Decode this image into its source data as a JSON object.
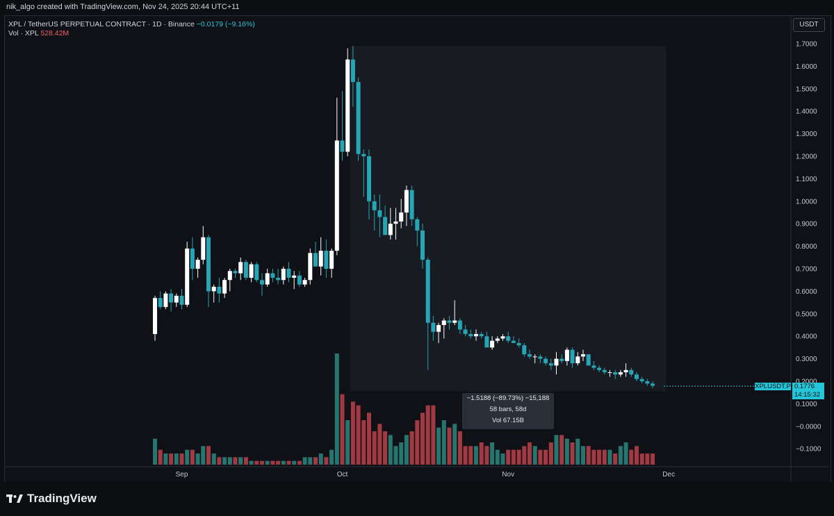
{
  "header": {
    "attribution": "nik_algo created with TradingView.com, Nov 24, 2025 20:44 UTC+11"
  },
  "legend": {
    "symbol_line": "XPL / TetherUS PERPETUAL CONTRACT · 1D · Binance",
    "change": "−0.0179 (−9.16%)",
    "vol_label": "Vol · XPL",
    "vol_value": "528.42M"
  },
  "currency_button": "USDT",
  "price_tag": {
    "symbol": "XPLUSDT.P",
    "price": "0.1776",
    "countdown": "14:15:32"
  },
  "measure": {
    "line1": "−1.5188 (−89.73%) −15,188",
    "line2": "58 bars, 58d",
    "line3": "Vol 67.15B"
  },
  "logo_text": "TradingView",
  "colors": {
    "up": "#ffffff",
    "down": "#26a5b5",
    "vol_up": "#26756f",
    "vol_down": "#a23a43",
    "last_price": "#26c6da"
  },
  "chart_data": {
    "type": "candlestick",
    "y_ticks": [
      "1.7000",
      "1.6000",
      "1.5000",
      "1.4000",
      "1.3000",
      "1.2000",
      "1.1000",
      "1.0000",
      "0.9000",
      "0.8000",
      "0.7000",
      "0.6000",
      "0.5000",
      "0.4000",
      "0.3000",
      "0.2000",
      "0.1000",
      "−0.0000",
      "−0.1000"
    ],
    "x_ticks": [
      "Sep",
      "Oct",
      "Nov",
      "Dec"
    ],
    "x_tick_days": [
      5,
      35,
      66,
      96
    ],
    "start_date": "2025-08-25",
    "ohlc": [
      [
        0.41,
        0.58,
        0.38,
        0.57
      ],
      [
        0.57,
        0.6,
        0.52,
        0.53
      ],
      [
        0.53,
        0.6,
        0.52,
        0.59
      ],
      [
        0.59,
        0.61,
        0.51,
        0.55
      ],
      [
        0.55,
        0.59,
        0.53,
        0.58
      ],
      [
        0.58,
        0.61,
        0.52,
        0.54
      ],
      [
        0.54,
        0.82,
        0.53,
        0.79
      ],
      [
        0.79,
        0.84,
        0.65,
        0.7
      ],
      [
        0.7,
        0.75,
        0.66,
        0.74
      ],
      [
        0.74,
        0.89,
        0.72,
        0.84
      ],
      [
        0.84,
        0.85,
        0.53,
        0.6
      ],
      [
        0.6,
        0.63,
        0.55,
        0.62
      ],
      [
        0.62,
        0.66,
        0.55,
        0.59
      ],
      [
        0.59,
        0.66,
        0.57,
        0.65
      ],
      [
        0.65,
        0.7,
        0.6,
        0.69
      ],
      [
        0.69,
        0.7,
        0.66,
        0.68
      ],
      [
        0.68,
        0.75,
        0.65,
        0.73
      ],
      [
        0.73,
        0.74,
        0.65,
        0.66
      ],
      [
        0.66,
        0.73,
        0.64,
        0.72
      ],
      [
        0.72,
        0.73,
        0.64,
        0.65
      ],
      [
        0.65,
        0.68,
        0.58,
        0.63
      ],
      [
        0.63,
        0.7,
        0.62,
        0.68
      ],
      [
        0.68,
        0.7,
        0.64,
        0.66
      ],
      [
        0.66,
        0.7,
        0.63,
        0.65
      ],
      [
        0.65,
        0.71,
        0.63,
        0.7
      ],
      [
        0.7,
        0.73,
        0.64,
        0.66
      ],
      [
        0.66,
        0.69,
        0.61,
        0.67
      ],
      [
        0.67,
        0.69,
        0.62,
        0.63
      ],
      [
        0.63,
        0.66,
        0.62,
        0.65
      ],
      [
        0.65,
        0.79,
        0.63,
        0.77
      ],
      [
        0.77,
        0.82,
        0.72,
        0.71
      ],
      [
        0.71,
        0.84,
        0.67,
        0.78
      ],
      [
        0.78,
        0.83,
        0.66,
        0.7
      ],
      [
        0.7,
        0.79,
        0.66,
        0.78
      ],
      [
        0.78,
        1.46,
        0.76,
        1.27
      ],
      [
        1.27,
        1.49,
        1.18,
        1.22
      ],
      [
        1.22,
        1.68,
        1.2,
        1.63
      ],
      [
        1.63,
        1.69,
        1.42,
        1.53
      ],
      [
        1.53,
        1.55,
        1.18,
        1.21
      ],
      [
        1.21,
        1.23,
        1.02,
        1.2
      ],
      [
        1.2,
        1.23,
        0.92,
        1.0
      ],
      [
        1.0,
        1.03,
        0.87,
        0.96
      ],
      [
        0.96,
        1.03,
        0.84,
        0.93
      ],
      [
        0.93,
        0.98,
        0.86,
        0.85
      ],
      [
        0.85,
        0.97,
        0.83,
        0.9
      ],
      [
        0.9,
        0.97,
        0.83,
        0.91
      ],
      [
        0.91,
        1.01,
        0.88,
        0.95
      ],
      [
        0.95,
        1.07,
        0.89,
        1.05
      ],
      [
        1.05,
        1.07,
        0.89,
        0.92
      ],
      [
        0.92,
        0.93,
        0.8,
        0.87
      ],
      [
        0.87,
        0.9,
        0.7,
        0.74
      ],
      [
        0.74,
        0.75,
        0.25,
        0.46
      ],
      [
        0.46,
        0.49,
        0.38,
        0.42
      ],
      [
        0.42,
        0.46,
        0.37,
        0.45
      ],
      [
        0.45,
        0.48,
        0.39,
        0.47
      ],
      [
        0.47,
        0.49,
        0.43,
        0.46
      ],
      [
        0.46,
        0.56,
        0.45,
        0.47
      ],
      [
        0.47,
        0.48,
        0.41,
        0.43
      ],
      [
        0.43,
        0.45,
        0.4,
        0.41
      ],
      [
        0.41,
        0.43,
        0.39,
        0.4
      ],
      [
        0.4,
        0.43,
        0.38,
        0.41
      ],
      [
        0.41,
        0.42,
        0.39,
        0.4
      ],
      [
        0.4,
        0.42,
        0.35,
        0.35
      ],
      [
        0.35,
        0.4,
        0.34,
        0.38
      ],
      [
        0.38,
        0.4,
        0.37,
        0.39
      ],
      [
        0.39,
        0.41,
        0.38,
        0.4
      ],
      [
        0.4,
        0.42,
        0.37,
        0.38
      ],
      [
        0.38,
        0.4,
        0.37,
        0.37
      ],
      [
        0.37,
        0.39,
        0.35,
        0.36
      ],
      [
        0.36,
        0.37,
        0.31,
        0.32
      ],
      [
        0.32,
        0.34,
        0.3,
        0.31
      ],
      [
        0.31,
        0.32,
        0.28,
        0.31
      ],
      [
        0.31,
        0.32,
        0.28,
        0.3
      ],
      [
        0.3,
        0.31,
        0.27,
        0.28
      ],
      [
        0.28,
        0.3,
        0.25,
        0.27
      ],
      [
        0.27,
        0.33,
        0.23,
        0.3
      ],
      [
        0.3,
        0.32,
        0.28,
        0.29
      ],
      [
        0.29,
        0.35,
        0.27,
        0.34
      ],
      [
        0.34,
        0.35,
        0.26,
        0.28
      ],
      [
        0.28,
        0.33,
        0.27,
        0.31
      ],
      [
        0.31,
        0.34,
        0.29,
        0.32
      ],
      [
        0.32,
        0.32,
        0.27,
        0.27
      ],
      [
        0.27,
        0.29,
        0.25,
        0.26
      ],
      [
        0.26,
        0.27,
        0.24,
        0.25
      ],
      [
        0.25,
        0.26,
        0.23,
        0.24
      ],
      [
        0.24,
        0.25,
        0.22,
        0.24
      ],
      [
        0.24,
        0.25,
        0.21,
        0.23
      ],
      [
        0.23,
        0.25,
        0.22,
        0.24
      ],
      [
        0.24,
        0.28,
        0.22,
        0.25
      ],
      [
        0.25,
        0.26,
        0.22,
        0.23
      ],
      [
        0.23,
        0.24,
        0.2,
        0.21
      ],
      [
        0.21,
        0.22,
        0.19,
        0.2
      ],
      [
        0.2,
        0.21,
        0.18,
        0.19
      ],
      [
        0.19,
        0.2,
        0.17,
        0.18
      ]
    ],
    "volume": [
      0.07,
      0.04,
      0.03,
      0.03,
      0.03,
      0.03,
      0.04,
      0.04,
      0.03,
      0.05,
      0.05,
      0.03,
      0.02,
      0.02,
      0.02,
      0.02,
      0.02,
      0.02,
      0.01,
      0.01,
      0.01,
      0.01,
      0.01,
      0.01,
      0.01,
      0.01,
      0.01,
      0.01,
      0.02,
      0.02,
      0.02,
      0.03,
      0.02,
      0.04,
      0.3,
      0.19,
      0.12,
      0.17,
      0.16,
      0.12,
      0.14,
      0.09,
      0.11,
      0.09,
      0.08,
      0.05,
      0.06,
      0.08,
      0.09,
      0.12,
      0.14,
      0.16,
      0.16,
      0.1,
      0.12,
      0.1,
      0.11,
      0.09,
      0.05,
      0.05,
      0.05,
      0.06,
      0.05,
      0.06,
      0.04,
      0.03,
      0.04,
      0.04,
      0.04,
      0.05,
      0.06,
      0.05,
      0.04,
      0.04,
      0.06,
      0.08,
      0.08,
      0.07,
      0.06,
      0.07,
      0.05,
      0.05,
      0.04,
      0.04,
      0.04,
      0.04,
      0.03,
      0.05,
      0.06,
      0.04,
      0.05,
      0.03,
      0.03,
      0.03
    ],
    "volume_up": [
      1,
      0,
      1,
      0,
      1,
      0,
      1,
      0,
      1,
      1,
      0,
      1,
      0,
      1,
      1,
      0,
      1,
      0,
      1,
      0,
      0,
      1,
      0,
      0,
      1,
      0,
      1,
      0,
      1,
      1,
      0,
      1,
      0,
      1,
      1,
      0,
      1,
      0,
      0,
      0,
      0,
      0,
      0,
      0,
      1,
      1,
      1,
      1,
      0,
      0,
      0,
      0,
      0,
      1,
      1,
      0,
      1,
      0,
      0,
      0,
      1,
      0,
      0,
      1,
      1,
      1,
      0,
      0,
      0,
      0,
      0,
      1,
      0,
      0,
      0,
      1,
      0,
      1,
      0,
      1,
      1,
      0,
      0,
      0,
      0,
      1,
      0,
      1,
      1,
      0,
      0,
      0,
      0,
      0
    ],
    "measure_range": {
      "from_day": 37,
      "to_day": 95,
      "from_price": 1.69,
      "to_price": 0.18
    }
  }
}
